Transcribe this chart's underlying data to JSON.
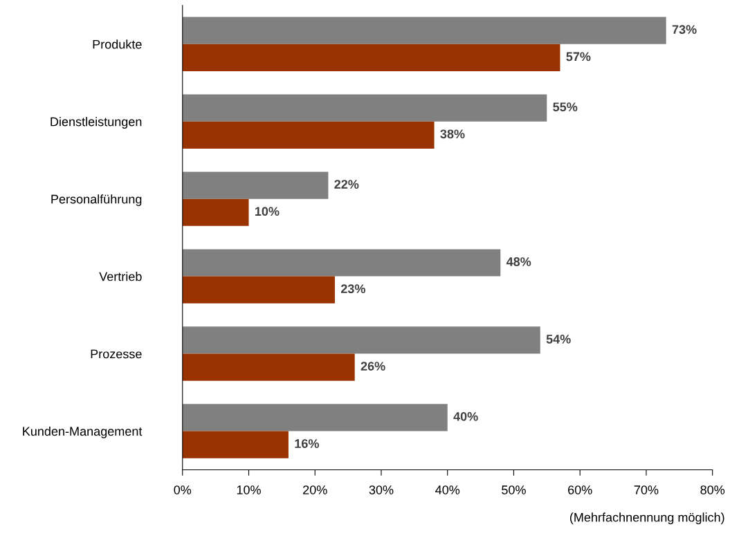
{
  "chart_data": {
    "type": "bar",
    "orientation": "horizontal",
    "categories": [
      "Produkte",
      "Dienstleistungen",
      "Personalführung",
      "Vertrieb",
      "Prozesse",
      "Kunden-Management"
    ],
    "series": [
      {
        "color": "#808080",
        "values": [
          73,
          55,
          22,
          48,
          54,
          40
        ],
        "value_labels": [
          "73%",
          "55%",
          "22%",
          "48%",
          "54%",
          "40%"
        ]
      },
      {
        "color": "#993300",
        "values": [
          57,
          38,
          10,
          23,
          26,
          16
        ],
        "value_labels": [
          "57%",
          "38%",
          "10%",
          "23%",
          "26%",
          "16%"
        ]
      }
    ],
    "xlim": [
      0,
      80
    ],
    "xticks": [
      {
        "value": 0,
        "label": "0%"
      },
      {
        "value": 10,
        "label": "10%"
      },
      {
        "value": 20,
        "label": "20%"
      },
      {
        "value": 30,
        "label": "30%"
      },
      {
        "value": 40,
        "label": "40%"
      },
      {
        "value": 50,
        "label": "50%"
      },
      {
        "value": 60,
        "label": "60%"
      },
      {
        "value": 70,
        "label": "70%"
      },
      {
        "value": 80,
        "label": "80%"
      }
    ],
    "grid": false,
    "annotations": [
      "(Mehrfachnennung möglich)"
    ]
  }
}
